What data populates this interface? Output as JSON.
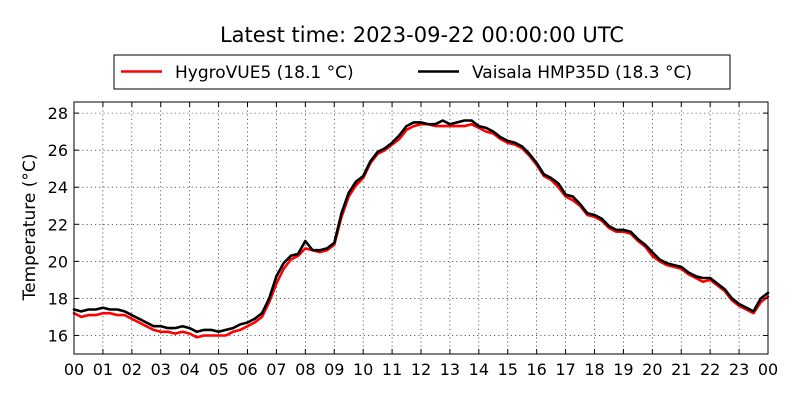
{
  "chart_data": {
    "type": "line",
    "title": "Latest time: 2023-09-22 00:00:00 UTC",
    "xlabel": "",
    "ylabel": "Temperature (°C)",
    "xlim": [
      0,
      24
    ],
    "ylim": [
      15,
      28.6
    ],
    "grid": true,
    "legend_placement": "top-center",
    "x_ticks": [
      0,
      1,
      2,
      3,
      4,
      5,
      6,
      7,
      8,
      9,
      10,
      11,
      12,
      13,
      14,
      15,
      16,
      17,
      18,
      19,
      20,
      21,
      22,
      23,
      24
    ],
    "x_tick_labels": [
      "00",
      "01",
      "02",
      "03",
      "04",
      "05",
      "06",
      "07",
      "08",
      "09",
      "10",
      "11",
      "12",
      "13",
      "14",
      "15",
      "16",
      "17",
      "18",
      "19",
      "20",
      "21",
      "22",
      "23",
      "00"
    ],
    "y_ticks": [
      16,
      18,
      20,
      22,
      24,
      26,
      28
    ],
    "y_tick_labels": [
      "16",
      "18",
      "20",
      "22",
      "24",
      "26",
      "28"
    ],
    "series": [
      {
        "name": "HygroVUE5 (18.1 °C)",
        "color": "#ff0000",
        "x": [
          0,
          0.25,
          0.5,
          0.75,
          1,
          1.25,
          1.5,
          1.75,
          2,
          2.25,
          2.5,
          2.75,
          3,
          3.25,
          3.5,
          3.75,
          4,
          4.25,
          4.5,
          4.75,
          5,
          5.25,
          5.5,
          5.75,
          6,
          6.25,
          6.5,
          6.75,
          7,
          7.25,
          7.5,
          7.75,
          8,
          8.25,
          8.5,
          8.75,
          9,
          9.25,
          9.5,
          9.75,
          10,
          10.25,
          10.5,
          10.75,
          11,
          11.25,
          11.5,
          11.75,
          12,
          12.25,
          12.5,
          12.75,
          13,
          13.25,
          13.5,
          13.75,
          14,
          14.25,
          14.5,
          14.75,
          15,
          15.25,
          15.5,
          15.75,
          16,
          16.25,
          16.5,
          16.75,
          17,
          17.25,
          17.5,
          17.75,
          18,
          18.25,
          18.5,
          18.75,
          19,
          19.25,
          19.5,
          19.75,
          20,
          20.25,
          20.5,
          20.75,
          21,
          21.25,
          21.5,
          21.75,
          22,
          22.25,
          22.5,
          22.75,
          23,
          23.25,
          23.5,
          23.75,
          24
        ],
        "y": [
          17.2,
          17.0,
          17.1,
          17.1,
          17.2,
          17.2,
          17.1,
          17.1,
          16.9,
          16.7,
          16.5,
          16.3,
          16.2,
          16.2,
          16.1,
          16.2,
          16.1,
          15.9,
          16.0,
          16.0,
          16.0,
          16.0,
          16.2,
          16.3,
          16.5,
          16.7,
          17.0,
          17.8,
          18.8,
          19.6,
          20.1,
          20.3,
          20.7,
          20.6,
          20.5,
          20.6,
          20.9,
          22.4,
          23.5,
          24.1,
          24.5,
          25.3,
          25.8,
          26.0,
          26.3,
          26.6,
          27.1,
          27.3,
          27.4,
          27.4,
          27.3,
          27.3,
          27.3,
          27.3,
          27.3,
          27.4,
          27.2,
          27.0,
          26.9,
          26.6,
          26.4,
          26.3,
          26.1,
          25.7,
          25.2,
          24.6,
          24.4,
          24.0,
          23.5,
          23.3,
          23.0,
          22.5,
          22.4,
          22.2,
          21.8,
          21.6,
          21.6,
          21.5,
          21.1,
          20.8,
          20.3,
          20.0,
          19.8,
          19.7,
          19.6,
          19.3,
          19.1,
          18.9,
          19.0,
          18.7,
          18.4,
          17.9,
          17.6,
          17.4,
          17.2,
          17.8,
          18.1
        ]
      },
      {
        "name": "Vaisala HMP35D (18.3 °C)",
        "color": "#000000",
        "x": [
          0,
          0.25,
          0.5,
          0.75,
          1,
          1.25,
          1.5,
          1.75,
          2,
          2.25,
          2.5,
          2.75,
          3,
          3.25,
          3.5,
          3.75,
          4,
          4.25,
          4.5,
          4.75,
          5,
          5.25,
          5.5,
          5.75,
          6,
          6.25,
          6.5,
          6.75,
          7,
          7.25,
          7.5,
          7.75,
          8,
          8.25,
          8.5,
          8.75,
          9,
          9.25,
          9.5,
          9.75,
          10,
          10.25,
          10.5,
          10.75,
          11,
          11.25,
          11.5,
          11.75,
          12,
          12.25,
          12.5,
          12.75,
          13,
          13.25,
          13.5,
          13.75,
          14,
          14.25,
          14.5,
          14.75,
          15,
          15.25,
          15.5,
          15.75,
          16,
          16.25,
          16.5,
          16.75,
          17,
          17.25,
          17.5,
          17.75,
          18,
          18.25,
          18.5,
          18.75,
          19,
          19.25,
          19.5,
          19.75,
          20,
          20.25,
          20.5,
          20.75,
          21,
          21.25,
          21.5,
          21.75,
          22,
          22.25,
          22.5,
          22.75,
          23,
          23.25,
          23.5,
          23.75,
          24
        ],
        "y": [
          17.4,
          17.3,
          17.4,
          17.4,
          17.5,
          17.4,
          17.4,
          17.3,
          17.1,
          16.9,
          16.7,
          16.5,
          16.5,
          16.4,
          16.4,
          16.5,
          16.4,
          16.2,
          16.3,
          16.3,
          16.2,
          16.3,
          16.4,
          16.6,
          16.7,
          16.9,
          17.2,
          18.0,
          19.2,
          19.9,
          20.3,
          20.4,
          21.1,
          20.6,
          20.6,
          20.7,
          21.0,
          22.6,
          23.7,
          24.3,
          24.6,
          25.4,
          25.9,
          26.1,
          26.4,
          26.8,
          27.3,
          27.5,
          27.5,
          27.4,
          27.4,
          27.6,
          27.4,
          27.5,
          27.6,
          27.6,
          27.3,
          27.2,
          27.0,
          26.7,
          26.5,
          26.4,
          26.2,
          25.8,
          25.3,
          24.7,
          24.5,
          24.2,
          23.6,
          23.5,
          23.1,
          22.6,
          22.5,
          22.3,
          21.9,
          21.7,
          21.7,
          21.6,
          21.2,
          20.9,
          20.5,
          20.1,
          19.9,
          19.8,
          19.7,
          19.4,
          19.2,
          19.1,
          19.1,
          18.8,
          18.5,
          18.0,
          17.7,
          17.5,
          17.3,
          18.0,
          18.3
        ]
      }
    ]
  }
}
